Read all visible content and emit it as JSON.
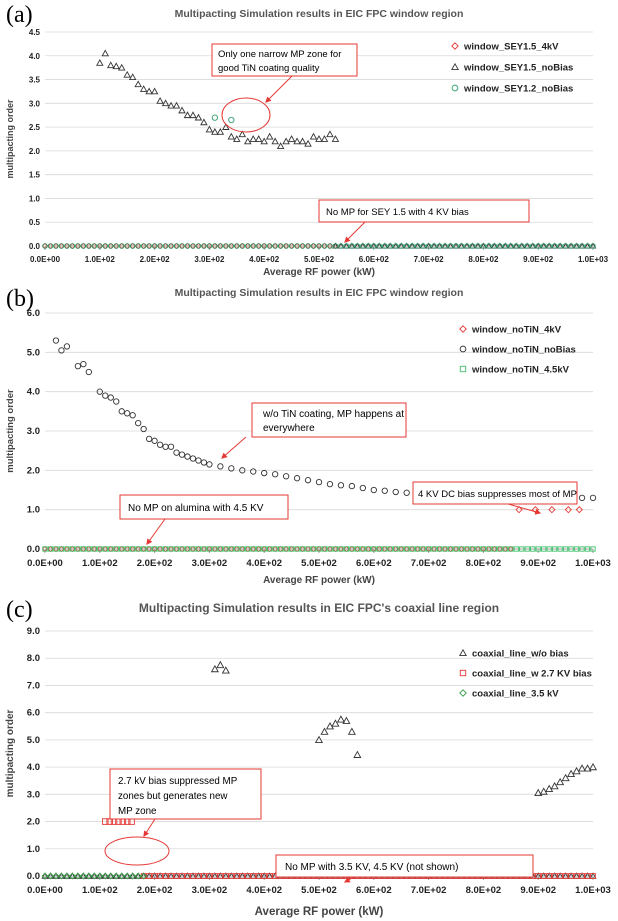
{
  "chart_data": [
    {
      "panel": "(a)",
      "type": "scatter",
      "title": "Multipacting Simulation results in EIC FPC window region",
      "xlabel": "Average RF power (kW)",
      "ylabel": "multipacting order",
      "xlim": [
        0,
        1000
      ],
      "ylim": [
        0,
        4.5
      ],
      "x_ticks": [
        "0.0E+00",
        "1.0E+02",
        "2.0E+02",
        "3.0E+02",
        "4.0E+02",
        "5.0E+02",
        "6.0E+02",
        "7.0E+02",
        "8.0E+02",
        "9.0E+02",
        "1.0E+03"
      ],
      "y_ticks": [
        "0.0",
        "0.5",
        "1.0",
        "1.5",
        "2.0",
        "2.5",
        "3.0",
        "3.5",
        "4.0",
        "4.5"
      ],
      "legend_position": "top-right",
      "grid": true,
      "series": [
        {
          "name": "window_SEY1.5_4kV",
          "marker": "diamond",
          "color": "#e53935",
          "baseline": {
            "from": 0,
            "to": 530,
            "step": 10,
            "y": 0
          }
        },
        {
          "name": "window_SEY1.5_noBias",
          "marker": "triangle",
          "color": "#333333",
          "x": [
            100,
            110,
            120,
            130,
            140,
            150,
            160,
            170,
            180,
            190,
            200,
            210,
            220,
            230,
            240,
            250,
            260,
            270,
            280,
            290,
            300,
            310,
            320,
            330,
            340,
            350,
            360,
            370,
            380,
            390,
            400,
            410,
            420,
            430,
            440,
            450,
            460,
            470,
            480,
            490,
            500,
            510,
            520,
            530
          ],
          "y": [
            3.85,
            4.05,
            3.8,
            3.78,
            3.75,
            3.6,
            3.55,
            3.4,
            3.3,
            3.25,
            3.25,
            3.05,
            3.0,
            2.95,
            2.95,
            2.85,
            2.75,
            2.75,
            2.7,
            2.6,
            2.45,
            2.4,
            2.4,
            2.5,
            2.3,
            2.25,
            2.35,
            2.2,
            2.25,
            2.25,
            2.2,
            2.3,
            2.2,
            2.1,
            2.2,
            2.25,
            2.2,
            2.2,
            2.15,
            2.3,
            2.25,
            2.25,
            2.35,
            2.25
          ],
          "baseline": {
            "from": 530,
            "to": 1000,
            "step": 10,
            "y": 0
          }
        },
        {
          "name": "window_SEY1.2_noBias",
          "marker": "circle",
          "color": "#2e9d6a",
          "x": [
            310,
            340
          ],
          "y": [
            2.7,
            2.65
          ],
          "baseline": {
            "from": 0,
            "to": 1000,
            "step": 10,
            "y": 0
          }
        }
      ],
      "annotations": [
        {
          "text": [
            "Only one narrow MP zone for",
            "good TiN coating quality"
          ]
        },
        {
          "text": [
            "No MP for SEY 1.5 with 4 KV bias"
          ]
        }
      ]
    },
    {
      "panel": "(b)",
      "type": "scatter",
      "title": "Multipacting Simulation results in EIC FPC window region",
      "xlabel": "Average RF power (kW)",
      "ylabel": "multipacting order",
      "xlim": [
        0,
        1000
      ],
      "ylim": [
        0,
        6.0
      ],
      "x_ticks": [
        "0.0E+00",
        "1.0E+02",
        "2.0E+02",
        "3.0E+02",
        "4.0E+02",
        "5.0E+02",
        "6.0E+02",
        "7.0E+02",
        "8.0E+02",
        "9.0E+02",
        "1.0E+03"
      ],
      "y_ticks": [
        "0.0",
        "1.0",
        "2.0",
        "3.0",
        "4.0",
        "5.0",
        "6.0"
      ],
      "legend_position": "top-right",
      "grid": true,
      "series": [
        {
          "name": "window_noTiN_4kV",
          "marker": "diamond",
          "color": "#e53935",
          "x": [
            865,
            895,
            925,
            955,
            975
          ],
          "y": [
            1.0,
            1.0,
            1.0,
            1.0,
            1.0
          ],
          "baseline": {
            "from": 0,
            "to": 850,
            "step": 10,
            "y": 0
          }
        },
        {
          "name": "window_noTiN_noBias",
          "marker": "circle",
          "color": "#333333",
          "x": [
            20,
            30,
            40,
            60,
            70,
            80,
            100,
            110,
            120,
            130,
            140,
            150,
            160,
            170,
            180,
            190,
            200,
            210,
            220,
            230,
            240,
            250,
            260,
            270,
            280,
            290,
            300,
            320,
            340,
            360,
            380,
            400,
            420,
            440,
            460,
            480,
            500,
            520,
            540,
            560,
            580,
            600,
            620,
            640,
            660,
            680,
            700,
            720,
            740,
            760,
            780,
            800,
            820,
            840,
            860,
            880,
            900,
            920,
            940,
            960,
            980,
            1000
          ],
          "y": [
            5.3,
            5.05,
            5.15,
            4.65,
            4.7,
            4.5,
            4.0,
            3.9,
            3.85,
            3.75,
            3.5,
            3.45,
            3.4,
            3.2,
            3.05,
            2.8,
            2.75,
            2.65,
            2.6,
            2.6,
            2.45,
            2.4,
            2.35,
            2.3,
            2.25,
            2.2,
            2.15,
            2.1,
            2.05,
            2.0,
            1.97,
            1.93,
            1.9,
            1.85,
            1.8,
            1.75,
            1.7,
            1.65,
            1.62,
            1.6,
            1.55,
            1.5,
            1.48,
            1.45,
            1.43,
            1.4,
            1.4,
            1.38,
            1.35,
            1.33,
            1.3,
            1.28,
            1.25,
            1.3,
            1.3,
            1.3,
            1.3,
            1.3,
            1.28,
            1.25,
            1.3,
            1.3
          ]
        },
        {
          "name": "window_noTiN_4.5kV",
          "marker": "square",
          "color": "#3fbf6a",
          "baseline": {
            "from": 0,
            "to": 1000,
            "step": 10,
            "y": 0
          }
        }
      ],
      "annotations": [
        {
          "text": [
            "w/o TiN coating, MP happens at",
            "everywhere"
          ]
        },
        {
          "text": [
            "4 KV DC bias suppresses most of MP"
          ]
        },
        {
          "text": [
            "No MP on alumina  with 4.5 KV"
          ]
        }
      ]
    },
    {
      "panel": "(c)",
      "type": "scatter",
      "title": "Multipacting Simulation results in EIC FPC's coaxial line region",
      "xlabel": "Average RF power (kW)",
      "ylabel": "multipacting order",
      "xlim": [
        0,
        1000
      ],
      "ylim": [
        0,
        9.0
      ],
      "x_ticks": [
        "0.0E+00",
        "1.0E+02",
        "2.0E+02",
        "3.0E+02",
        "4.0E+02",
        "5.0E+02",
        "6.0E+02",
        "7.0E+02",
        "8.0E+02",
        "9.0E+02",
        "1.0E+03"
      ],
      "y_ticks": [
        "0.0",
        "1.0",
        "2.0",
        "3.0",
        "4.0",
        "5.0",
        "6.0",
        "7.0",
        "8.0",
        "9.0"
      ],
      "legend_position": "top-right",
      "grid": true,
      "series": [
        {
          "name": "coaxial_line_w/o bias",
          "marker": "triangle",
          "color": "#333333",
          "x": [
            310,
            320,
            330,
            500,
            510,
            520,
            530,
            540,
            550,
            560,
            570,
            900,
            910,
            920,
            930,
            940,
            950,
            960,
            970,
            980,
            990,
            1000
          ],
          "y": [
            7.6,
            7.75,
            7.55,
            5.0,
            5.3,
            5.5,
            5.6,
            5.75,
            5.7,
            5.3,
            4.45,
            3.05,
            3.1,
            3.2,
            3.3,
            3.45,
            3.6,
            3.75,
            3.85,
            3.95,
            3.95,
            4.0
          ],
          "baseline": {
            "from": 0,
            "to": 1000,
            "step": 10,
            "y": 0
          }
        },
        {
          "name": "coaxial_line_w 2.7 KV bias",
          "marker": "square",
          "color": "#e53935",
          "x": [
            110,
            118,
            126,
            134,
            142,
            150,
            158
          ],
          "y": [
            2.0,
            2.0,
            2.0,
            2.0,
            2.0,
            2.0,
            2.0
          ],
          "baseline": {
            "from": 180,
            "to": 1000,
            "step": 10,
            "y": 0
          }
        },
        {
          "name": "coaxial_line_3.5 kV",
          "marker": "diamond",
          "color": "#3aa04a",
          "baseline": {
            "from": 0,
            "to": 180,
            "step": 10,
            "y": 0
          }
        }
      ],
      "annotations": [
        {
          "text": [
            "2.7 kV bias suppressed MP",
            "zones but generates new",
            "MP zone"
          ]
        },
        {
          "text": [
            "No MP with 3.5 KV, 4.5 KV (not shown)"
          ]
        }
      ]
    }
  ]
}
